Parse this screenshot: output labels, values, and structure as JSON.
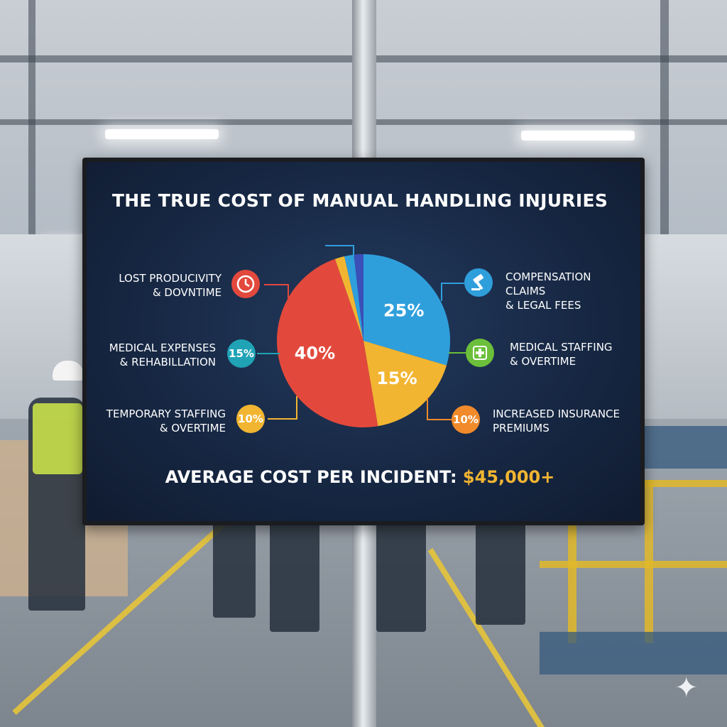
{
  "title": "THE TRUE COST OF MANUAL HANDLING INJURIES",
  "footer": {
    "label": "AVERAGE COST PER INCIDENT:",
    "value": "$45,000+"
  },
  "labels": {
    "lost_productivity": [
      "LOST PRODUCIVITY",
      "& DOVNTIME"
    ],
    "medical_expenses": [
      "MEDICAL EXPENSES",
      "& REHABILLATION"
    ],
    "temporary_staffing": [
      "TEMPORARY STAFFING",
      "& OVERTIME"
    ],
    "compensation": [
      "COMPENSATION CLAIMS",
      "& LEGAL FEES"
    ],
    "medical_staffing": [
      "MEDICAL  STAFFING",
      "& OVERTIME"
    ],
    "insurance": [
      "INCREASED INSURANCE",
      "PREMIUMS"
    ]
  },
  "badges": {
    "medical_expenses": "15%",
    "temporary_staffing": "10%",
    "insurance": "10%"
  },
  "icons": {
    "lost_productivity": "clock-icon",
    "compensation": "gavel-icon",
    "medical_staffing": "medical-cross-icon"
  },
  "colors": {
    "red": "#e2493c",
    "blue": "#2f9fdc",
    "yellow": "#f2b531",
    "orange": "#f08a2a",
    "teal": "#1fa3b5",
    "green": "#6bbf3a",
    "navy_slice": "#3a4fb8",
    "screen_bg": "#172844",
    "highlight": "#f2b531"
  },
  "chart_data": {
    "type": "pie",
    "title": "THE TRUE COST OF MANUAL HANDLING INJURIES",
    "slices": [
      {
        "value": 25,
        "label": "25%",
        "color": "#2f9fdc"
      },
      {
        "value": 15,
        "label": "15%",
        "color": "#f2b531"
      },
      {
        "value": 40,
        "label": "40%",
        "color": "#e2493c"
      },
      {
        "value": 1.5,
        "label": "",
        "color": "#f2b531"
      },
      {
        "value": 1.5,
        "label": "",
        "color": "#2f9fdc"
      },
      {
        "value": 1.5,
        "label": "",
        "color": "#3a4fb8"
      }
    ]
  }
}
